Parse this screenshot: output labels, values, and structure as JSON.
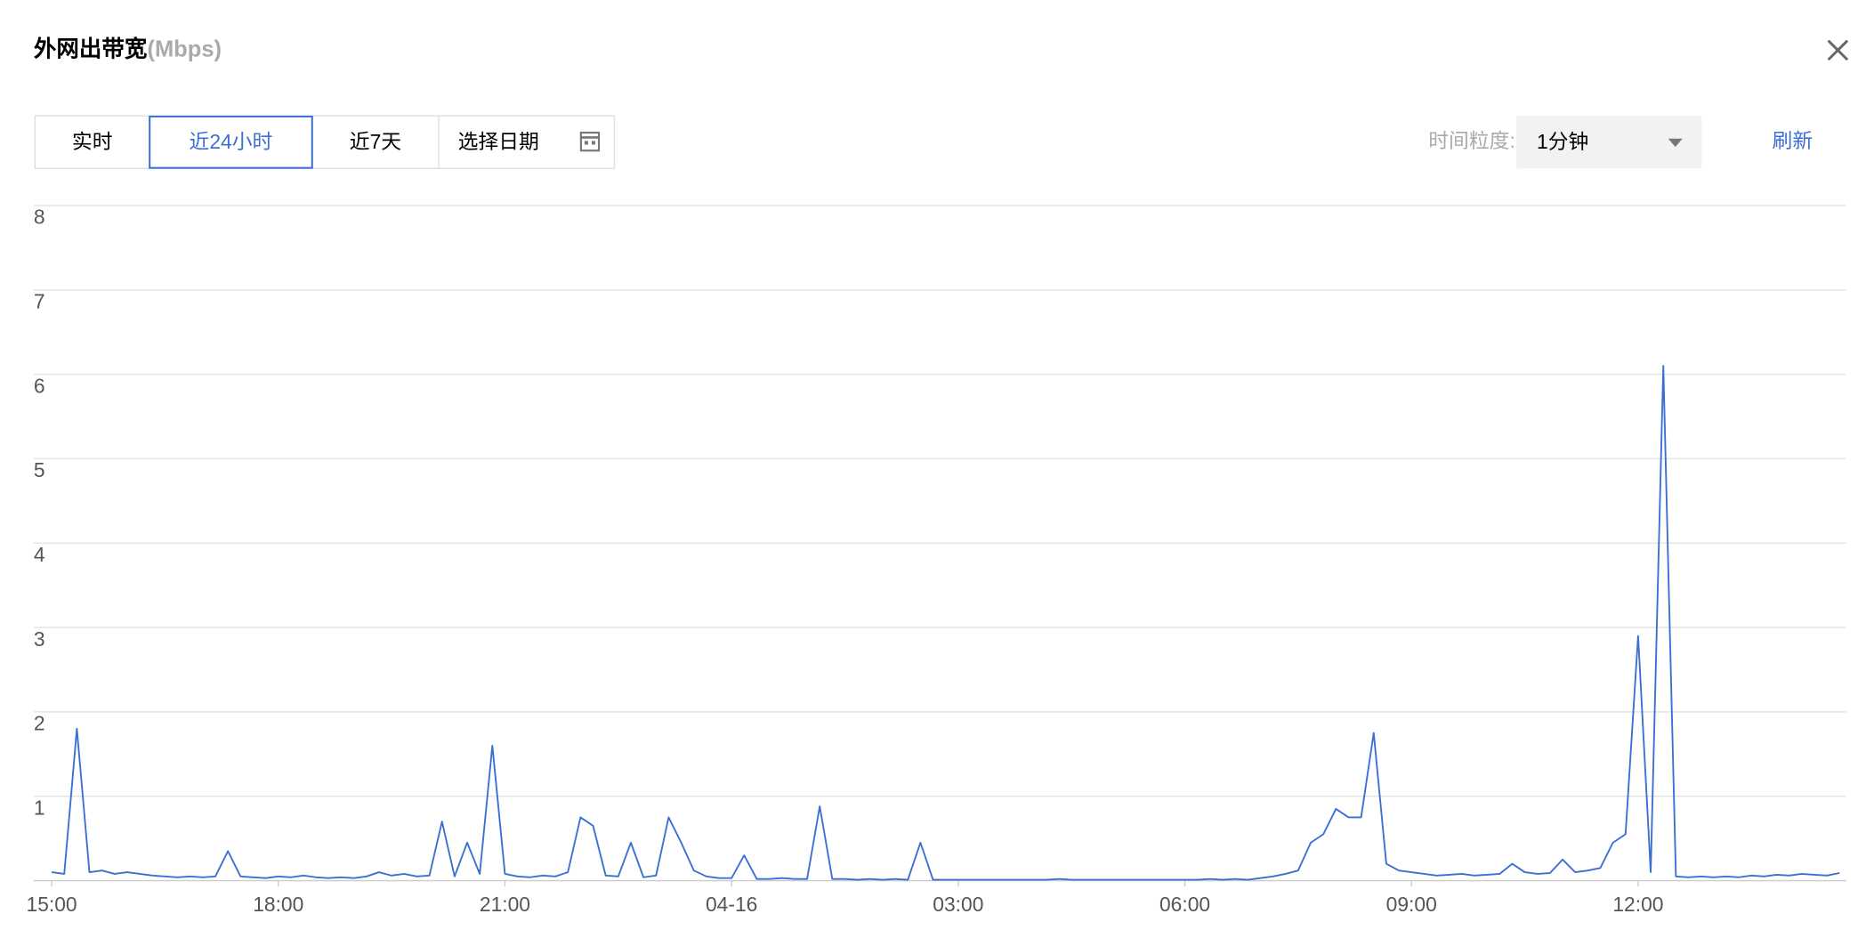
{
  "header": {
    "title": "外网出带宽",
    "unit": "(Mbps)"
  },
  "controls": {
    "ranges": [
      "实时",
      "近24小时",
      "近7天"
    ],
    "active_range": 1,
    "date_picker": "选择日期",
    "granularity_label": "时间粒度:",
    "granularity": "1分钟",
    "refresh": "刷新"
  },
  "chart_data": {
    "type": "line",
    "categories": [
      "15:00",
      "15:10",
      "15:20",
      "15:30",
      "15:40",
      "15:50",
      "16:00",
      "16:10",
      "16:20",
      "16:30",
      "16:40",
      "16:50",
      "17:00",
      "17:10",
      "17:20",
      "17:30",
      "17:40",
      "17:50",
      "18:00",
      "18:10",
      "18:20",
      "18:30",
      "18:40",
      "18:50",
      "19:00",
      "19:10",
      "19:20",
      "19:30",
      "19:40",
      "19:50",
      "20:00",
      "20:10",
      "20:20",
      "20:30",
      "20:40",
      "20:50",
      "21:00",
      "21:10",
      "21:20",
      "21:30",
      "21:40",
      "21:50",
      "22:00",
      "22:10",
      "22:20",
      "22:30",
      "22:40",
      "22:50",
      "23:00",
      "23:10",
      "23:20",
      "23:30",
      "23:40",
      "23:50",
      "00:00",
      "00:10",
      "00:20",
      "00:30",
      "00:40",
      "00:50",
      "01:00",
      "01:10",
      "01:20",
      "01:30",
      "01:40",
      "01:50",
      "02:00",
      "02:10",
      "02:20",
      "02:30",
      "02:40",
      "02:50",
      "03:00",
      "03:10",
      "03:20",
      "03:30",
      "03:40",
      "03:50",
      "04:00",
      "04:10",
      "04:20",
      "04:30",
      "04:40",
      "04:50",
      "05:00",
      "05:10",
      "05:20",
      "05:30",
      "05:40",
      "05:50",
      "06:00",
      "06:10",
      "06:20",
      "06:30",
      "06:40",
      "06:50",
      "07:00",
      "07:10",
      "07:20",
      "07:30",
      "07:40",
      "07:50",
      "08:00",
      "08:10",
      "08:20",
      "08:30",
      "08:40",
      "08:50",
      "09:00",
      "09:10",
      "09:20",
      "09:30",
      "09:40",
      "09:50",
      "10:00",
      "10:10",
      "10:20",
      "10:30",
      "10:40",
      "10:50",
      "11:00",
      "11:10",
      "11:20",
      "11:30",
      "11:40",
      "11:50",
      "12:00",
      "12:10",
      "12:20",
      "12:30",
      "12:40",
      "12:50",
      "13:00",
      "13:10",
      "13:20",
      "13:30",
      "13:40",
      "13:50",
      "14:00",
      "14:10",
      "14:20",
      "14:30",
      "14:40"
    ],
    "series": [
      {
        "name": "外网出带宽",
        "color": "#3c6fd4",
        "values": [
          0.1,
          0.08,
          1.8,
          0.1,
          0.12,
          0.08,
          0.1,
          0.08,
          0.06,
          0.05,
          0.04,
          0.05,
          0.04,
          0.05,
          0.35,
          0.05,
          0.04,
          0.03,
          0.05,
          0.04,
          0.06,
          0.04,
          0.03,
          0.04,
          0.03,
          0.05,
          0.1,
          0.06,
          0.08,
          0.05,
          0.06,
          0.7,
          0.05,
          0.45,
          0.08,
          1.6,
          0.08,
          0.05,
          0.04,
          0.06,
          0.05,
          0.1,
          0.75,
          0.65,
          0.06,
          0.05,
          0.45,
          0.04,
          0.06,
          0.75,
          0.45,
          0.12,
          0.05,
          0.03,
          0.03,
          0.3,
          0.02,
          0.02,
          0.03,
          0.02,
          0.02,
          0.88,
          0.02,
          0.02,
          0.01,
          0.02,
          0.01,
          0.02,
          0.01,
          0.45,
          0.01,
          0.01,
          0.01,
          0.01,
          0.01,
          0.01,
          0.01,
          0.01,
          0.01,
          0.01,
          0.02,
          0.01,
          0.01,
          0.01,
          0.01,
          0.01,
          0.01,
          0.01,
          0.01,
          0.01,
          0.01,
          0.01,
          0.02,
          0.01,
          0.02,
          0.01,
          0.03,
          0.05,
          0.08,
          0.12,
          0.45,
          0.55,
          0.85,
          0.75,
          0.75,
          1.75,
          0.2,
          0.12,
          0.1,
          0.08,
          0.06,
          0.07,
          0.08,
          0.06,
          0.07,
          0.08,
          0.2,
          0.1,
          0.08,
          0.09,
          0.25,
          0.1,
          0.12,
          0.15,
          0.45,
          0.55,
          2.9,
          0.1,
          6.1,
          0.05,
          0.04,
          0.05,
          0.04,
          0.05,
          0.04,
          0.06,
          0.05,
          0.07,
          0.06,
          0.08,
          0.07,
          0.06,
          0.09
        ]
      }
    ],
    "ylim": [
      0,
      8
    ],
    "yticks": [
      1,
      2,
      3,
      4,
      5,
      6,
      7,
      8
    ],
    "xticks": [
      "15:00",
      "18:00",
      "21:00",
      {
        "value": "00:00",
        "label": "04-16"
      },
      "03:00",
      "06:00",
      "09:00",
      "12:00"
    ],
    "grid": true
  }
}
